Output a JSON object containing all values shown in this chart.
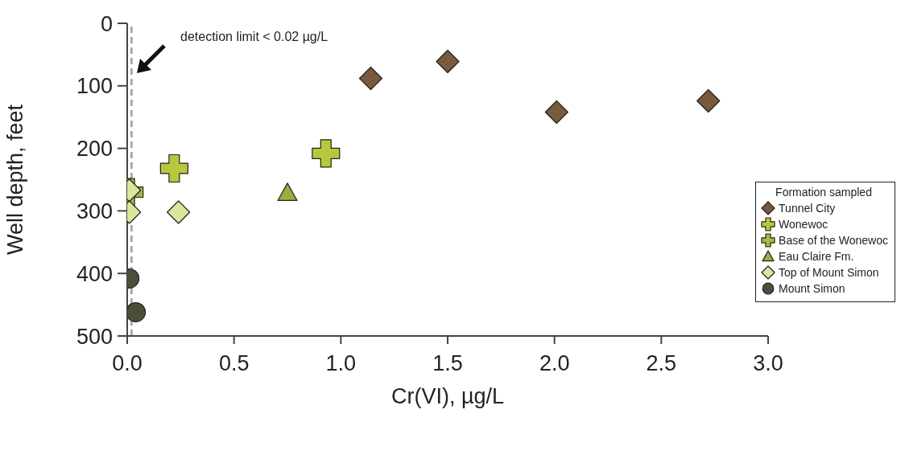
{
  "chart_data": {
    "type": "scatter",
    "xlabel": "Cr(VI),  µg/L",
    "ylabel": "Well depth, feet",
    "legend_title": "Formation sampled",
    "legend": "right",
    "xlim": [
      0,
      3
    ],
    "xticks": [
      {
        "value": 0,
        "label": "0.0"
      },
      {
        "value": 0.5,
        "label": "0.5"
      },
      {
        "value": 1,
        "label": "1.0"
      },
      {
        "value": 1.5,
        "label": "1.5"
      },
      {
        "value": 2,
        "label": "2.0"
      },
      {
        "value": 2.5,
        "label": "2.5"
      },
      {
        "value": 3,
        "label": "3.0"
      }
    ],
    "ylim": [
      500,
      0
    ],
    "yticks": [
      0,
      100,
      200,
      300,
      400,
      500
    ],
    "ref_lines": [
      {
        "axis": "x",
        "value": 0.02,
        "color": "#aaaaaa",
        "line_style": "dashed"
      }
    ],
    "annotations": [
      "detection limit < 0.02 µg/L"
    ],
    "series": [
      {
        "name": "Tunnel City",
        "color": "#7a5a3c",
        "marker": "diamond",
        "x": [
          1.14,
          1.5,
          2.01,
          2.72
        ],
        "values": [
          88,
          61,
          142,
          124
        ]
      },
      {
        "name": "Wonewoc",
        "color": "#b8c83c",
        "marker": "cross",
        "x": [
          0.22,
          0.93
        ],
        "values": [
          232,
          208
        ]
      },
      {
        "name": "Base of the Wonewoc",
        "color": "#a8b840",
        "marker": "cross",
        "x": [
          0.01
        ],
        "values": [
          270
        ]
      },
      {
        "name": "Eau Claire Fm.",
        "color": "#9aae3a",
        "marker": "triangle",
        "x": [
          0.75
        ],
        "values": [
          271
        ]
      },
      {
        "name": "Top of Mount Simon",
        "color": "#dde49c",
        "marker": "diamond",
        "x": [
          0.01,
          0.01,
          0.24
        ],
        "values": [
          267,
          302,
          302
        ]
      },
      {
        "name": "Mount Simon",
        "color": "#4a4f38",
        "marker": "circle",
        "x": [
          0.01,
          0.04
        ],
        "values": [
          408,
          462
        ]
      }
    ]
  }
}
